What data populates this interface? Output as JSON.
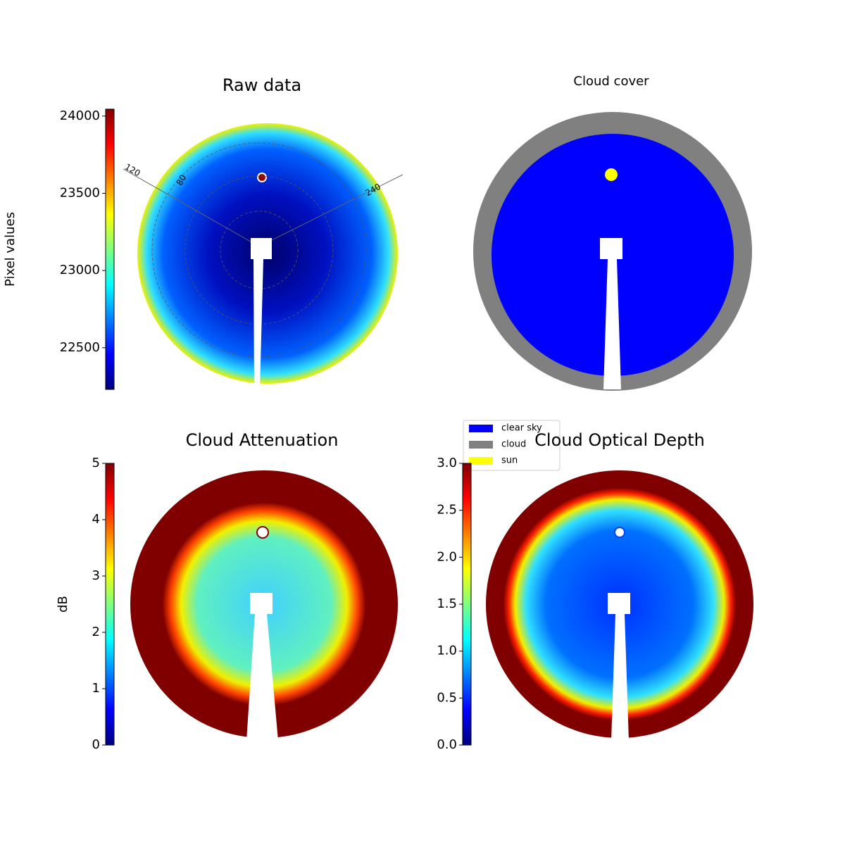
{
  "chart_data": [
    {
      "type": "image",
      "title": "Raw data",
      "colormap": "jet",
      "colorbar_label": "Pixel values",
      "clim": [
        22230,
        24045
      ],
      "cticks": [
        22500,
        23000,
        23500,
        24000
      ],
      "annotations": [
        "120",
        "80",
        "240"
      ]
    },
    {
      "type": "image",
      "title": "Cloud cover",
      "legend": [
        {
          "name": "clear sky",
          "color": "#0000ff"
        },
        {
          "name": "cloud",
          "color": "#808080"
        },
        {
          "name": "sun",
          "color": "#ffff00"
        }
      ]
    },
    {
      "type": "image",
      "title": "Cloud Attenuation",
      "colormap": "jet",
      "colorbar_label": "dB",
      "clim": [
        0,
        5
      ],
      "cticks": [
        0,
        1,
        2,
        3,
        4,
        5
      ]
    },
    {
      "type": "image",
      "title": "Cloud Optical Depth",
      "colormap": "jet",
      "clim": [
        0,
        3
      ],
      "cticks": [
        {
          "value": 0,
          "label": "0.0"
        },
        0.5,
        {
          "value": 1,
          "label": "1.0"
        },
        1.5,
        {
          "value": 2,
          "label": "2.0"
        },
        2.5,
        {
          "value": 3,
          "label": "3.0"
        }
      ]
    }
  ]
}
